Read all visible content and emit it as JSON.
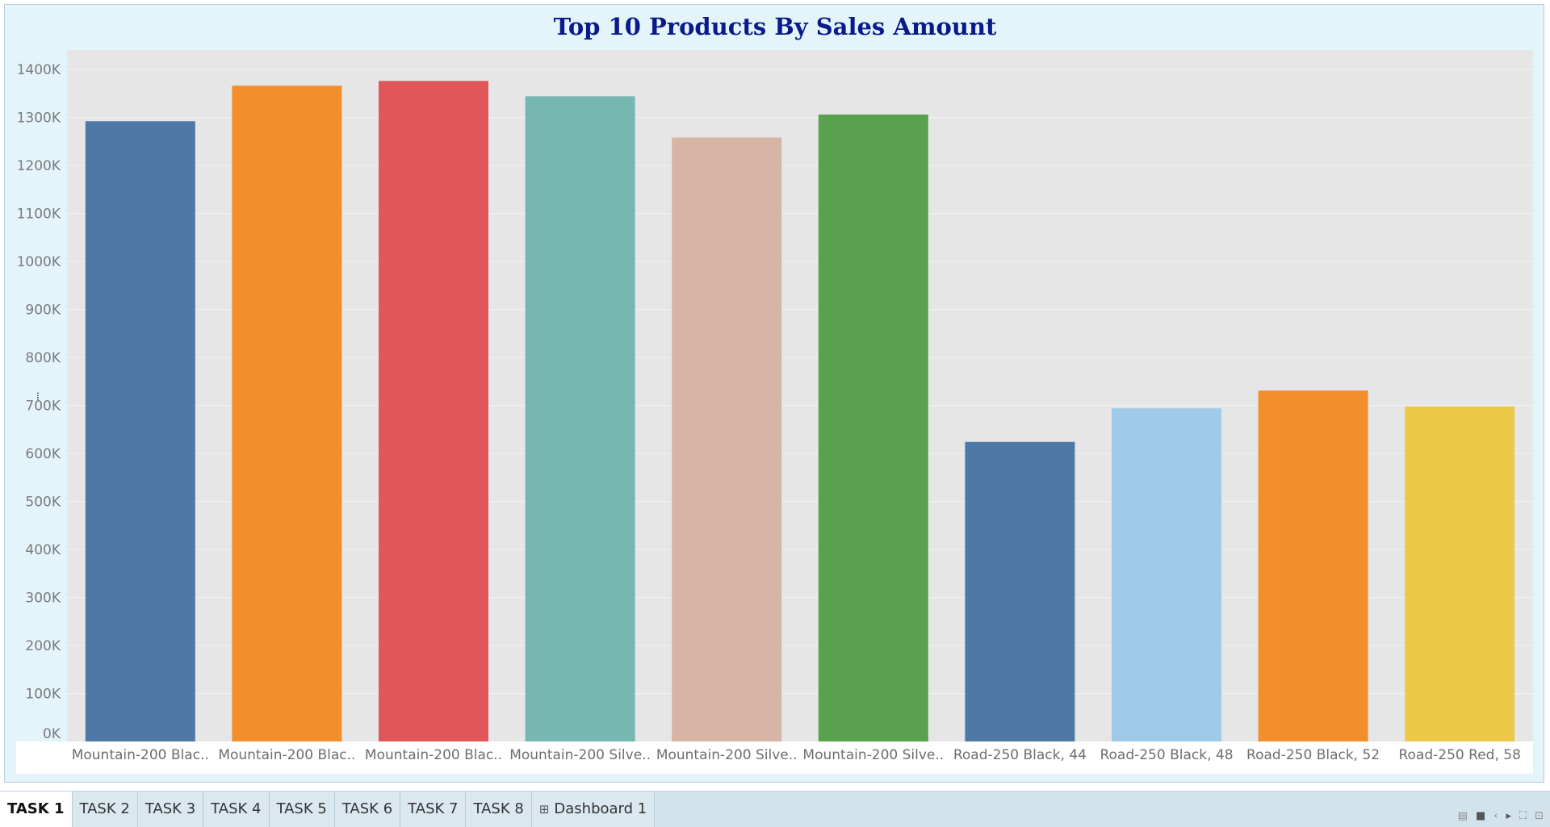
{
  "chart_data": {
    "type": "bar",
    "title": "Top 10 Products By Sales Amount",
    "xlabel": "",
    "ylabel": "",
    "ylim": [
      0,
      1400000
    ],
    "yticks": [
      0,
      100000,
      200000,
      300000,
      400000,
      500000,
      600000,
      700000,
      800000,
      900000,
      1000000,
      1100000,
      1200000,
      1300000,
      1400000
    ],
    "ytick_labels": [
      "0K",
      "100K",
      "200K",
      "300K",
      "400K",
      "500K",
      "600K",
      "700K",
      "800K",
      "900K",
      "1000K",
      "1100K",
      "1200K",
      "1300K",
      "1400K"
    ],
    "categories": [
      "Mountain-200 Blac..",
      "Mountain-200 Blac..",
      "Mountain-200 Blac..",
      "Mountain-200 Silve..",
      "Mountain-200 Silve..",
      "Mountain-200 Silve..",
      "Road-250 Black, 44",
      "Road-250 Black, 48",
      "Road-250 Black, 52",
      "Road-250 Red, 58"
    ],
    "values": [
      1292000,
      1366000,
      1376000,
      1344000,
      1258000,
      1306000,
      624000,
      694000,
      731000,
      698000
    ],
    "colors": [
      "#4e79a7",
      "#f28e2b",
      "#e15759",
      "#76b7b2",
      "#d7b5a6",
      "#59a14f",
      "#4e79a7",
      "#a0cbe8",
      "#f28e2b",
      "#edc948"
    ],
    "grid": true,
    "legend": "none"
  },
  "tabs": [
    {
      "label": "TASK 1",
      "active": true
    },
    {
      "label": "TASK 2",
      "active": false
    },
    {
      "label": "TASK 3",
      "active": false
    },
    {
      "label": "TASK 4",
      "active": false
    },
    {
      "label": "TASK 5",
      "active": false
    },
    {
      "label": "TASK 6",
      "active": false
    },
    {
      "label": "TASK 7",
      "active": false
    },
    {
      "label": "TASK 8",
      "active": false
    },
    {
      "label": "Dashboard 1",
      "active": false,
      "icon": "dashboard-grid-icon"
    }
  ],
  "status_icons": [
    "grid-view-icon",
    "single-view-icon",
    "prev-arrow-icon",
    "next-arrow-icon",
    "fullscreen-icon",
    "presentation-icon"
  ],
  "colors": {
    "frame_background": "#e3f4fb",
    "plot_background": "#e6e6e6",
    "title_color": "#0a1a8c",
    "tab_bar": "#d3e3ec"
  }
}
